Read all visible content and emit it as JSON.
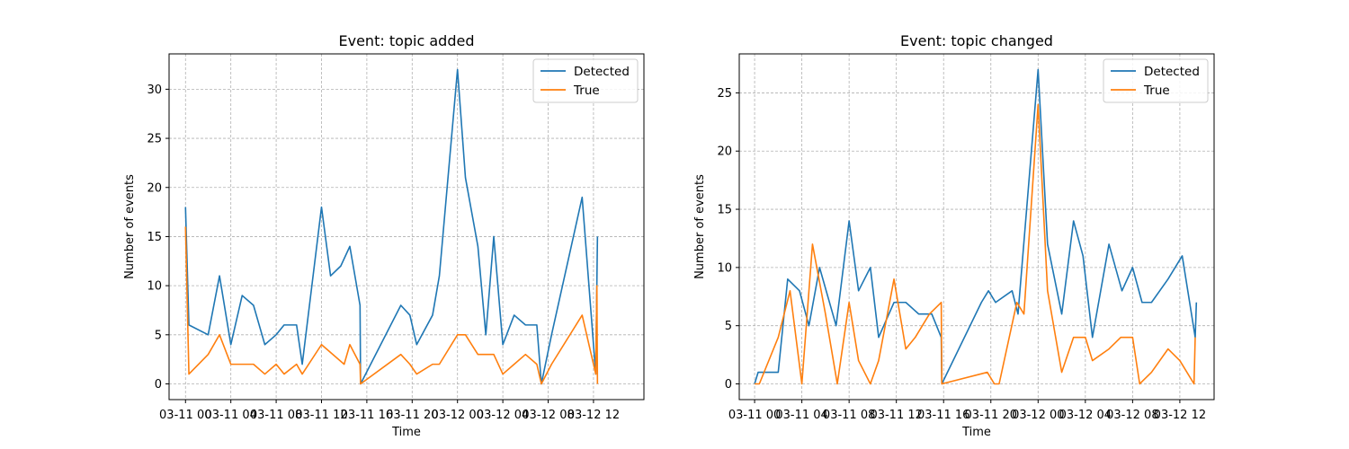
{
  "chart_data": [
    {
      "type": "line",
      "title": "Event: topic added",
      "xlabel": "Time",
      "ylabel": "Number of events",
      "x_unit": "hours since 03-11 00:00",
      "xlim": [
        -1.45,
        40.45
      ],
      "ylim": [
        -1.6,
        33.6
      ],
      "x_ticks": [
        {
          "label": "03-11 00",
          "value": 0
        },
        {
          "label": "03-11 04",
          "value": 4
        },
        {
          "label": "03-11 08",
          "value": 8
        },
        {
          "label": "03-11 12",
          "value": 12
        },
        {
          "label": "03-11 16",
          "value": 16
        },
        {
          "label": "03-11 20",
          "value": 20
        },
        {
          "label": "03-12 00",
          "value": 24
        },
        {
          "label": "03-12 04",
          "value": 28
        },
        {
          "label": "03-12 08",
          "value": 32
        },
        {
          "label": "03-12 12",
          "value": 36
        }
      ],
      "y_ticks": [
        0,
        5,
        10,
        15,
        20,
        25,
        30
      ],
      "grid": true,
      "legend_position": "top-right",
      "series": [
        {
          "name": "Detected",
          "color": "#1f77b4",
          "points": [
            [
              0,
              18
            ],
            [
              0.3,
              6
            ],
            [
              2,
              5
            ],
            [
              3,
              11
            ],
            [
              4,
              4
            ],
            [
              5,
              9
            ],
            [
              6,
              8
            ],
            [
              7,
              4
            ],
            [
              8,
              5
            ],
            [
              8.7,
              6
            ],
            [
              9.8,
              6
            ],
            [
              10.3,
              2
            ],
            [
              12,
              18
            ],
            [
              12.8,
              11
            ],
            [
              13.7,
              12
            ],
            [
              14.5,
              14
            ],
            [
              15.4,
              8
            ],
            [
              15.45,
              0
            ],
            [
              19,
              8
            ],
            [
              19.8,
              7
            ],
            [
              20.4,
              4
            ],
            [
              21.8,
              7
            ],
            [
              22.4,
              11
            ],
            [
              24,
              32
            ],
            [
              24.7,
              21
            ],
            [
              25.8,
              14
            ],
            [
              26.5,
              5
            ],
            [
              27.2,
              15
            ],
            [
              28,
              4
            ],
            [
              29,
              7
            ],
            [
              30,
              6
            ],
            [
              31,
              6
            ],
            [
              31.4,
              0
            ],
            [
              32.3,
              5
            ],
            [
              35,
              19
            ],
            [
              36.2,
              1
            ],
            [
              36.35,
              15
            ]
          ]
        },
        {
          "name": "True",
          "color": "#ff7f0e",
          "points": [
            [
              0,
              16
            ],
            [
              0.3,
              1
            ],
            [
              2,
              3
            ],
            [
              3,
              5
            ],
            [
              4,
              2
            ],
            [
              5,
              2
            ],
            [
              6,
              2
            ],
            [
              7,
              1
            ],
            [
              8,
              2
            ],
            [
              8.7,
              1
            ],
            [
              9.8,
              2
            ],
            [
              10.3,
              1
            ],
            [
              12,
              4
            ],
            [
              14,
              2
            ],
            [
              14.5,
              4
            ],
            [
              15.4,
              2
            ],
            [
              15.45,
              0
            ],
            [
              19,
              3
            ],
            [
              19.8,
              2
            ],
            [
              20.4,
              1
            ],
            [
              21.8,
              2
            ],
            [
              22.4,
              2
            ],
            [
              24,
              5
            ],
            [
              24.7,
              5
            ],
            [
              25.8,
              3
            ],
            [
              26.5,
              3
            ],
            [
              27.2,
              3
            ],
            [
              28,
              1
            ],
            [
              29,
              2
            ],
            [
              30,
              3
            ],
            [
              31,
              2
            ],
            [
              31.4,
              0
            ],
            [
              32.3,
              2
            ],
            [
              35,
              7
            ],
            [
              36.2,
              1
            ],
            [
              36.3,
              10
            ],
            [
              36.35,
              0
            ]
          ]
        }
      ]
    },
    {
      "type": "line",
      "title": "Event: topic changed",
      "xlabel": "Time",
      "ylabel": "Number of events",
      "x_unit": "hours since 03-11 00:00",
      "xlim": [
        -1.3,
        38.9
      ],
      "ylim": [
        -1.35,
        28.35
      ],
      "x_ticks": [
        {
          "label": "03-11 00",
          "value": 0
        },
        {
          "label": "03-11 04",
          "value": 4
        },
        {
          "label": "03-11 08",
          "value": 8
        },
        {
          "label": "03-11 12",
          "value": 12
        },
        {
          "label": "03-11 16",
          "value": 16
        },
        {
          "label": "03-11 20",
          "value": 20
        },
        {
          "label": "03-12 00",
          "value": 24
        },
        {
          "label": "03-12 04",
          "value": 28
        },
        {
          "label": "03-12 08",
          "value": 32
        },
        {
          "label": "03-12 12",
          "value": 36
        }
      ],
      "y_ticks": [
        0,
        5,
        10,
        15,
        20,
        25
      ],
      "grid": true,
      "legend_position": "top-right",
      "series": [
        {
          "name": "Detected",
          "color": "#1f77b4",
          "points": [
            [
              0,
              0
            ],
            [
              0.3,
              1
            ],
            [
              2,
              1
            ],
            [
              2.8,
              9
            ],
            [
              3.8,
              8
            ],
            [
              4.6,
              5
            ],
            [
              5.5,
              10
            ],
            [
              6.9,
              5
            ],
            [
              8,
              14
            ],
            [
              8.8,
              8
            ],
            [
              9.8,
              10
            ],
            [
              10.5,
              4
            ],
            [
              11.8,
              7
            ],
            [
              12.8,
              7
            ],
            [
              13.9,
              6
            ],
            [
              15,
              6
            ],
            [
              15.8,
              4
            ],
            [
              15.85,
              0
            ],
            [
              19.2,
              7
            ],
            [
              19.8,
              8
            ],
            [
              20.4,
              7
            ],
            [
              21.8,
              8
            ],
            [
              22.3,
              6
            ],
            [
              24,
              27
            ],
            [
              24.8,
              12
            ],
            [
              26,
              6
            ],
            [
              27,
              14
            ],
            [
              27.8,
              11
            ],
            [
              28.6,
              4
            ],
            [
              30,
              12
            ],
            [
              31.1,
              8
            ],
            [
              32,
              10
            ],
            [
              32.8,
              7
            ],
            [
              33.6,
              7
            ],
            [
              35,
              9
            ],
            [
              36.2,
              11
            ],
            [
              37.3,
              4
            ],
            [
              37.4,
              7
            ]
          ]
        },
        {
          "name": "True",
          "color": "#ff7f0e",
          "points": [
            [
              0,
              0
            ],
            [
              0.4,
              0
            ],
            [
              2,
              4
            ],
            [
              3,
              8
            ],
            [
              4,
              0
            ],
            [
              4.9,
              12
            ],
            [
              6,
              6
            ],
            [
              7,
              0
            ],
            [
              8,
              7
            ],
            [
              8.8,
              2
            ],
            [
              9.8,
              0
            ],
            [
              10.5,
              2
            ],
            [
              11.8,
              9
            ],
            [
              12.8,
              3
            ],
            [
              13.6,
              4
            ],
            [
              14.8,
              6
            ],
            [
              15.8,
              7
            ],
            [
              15.85,
              0
            ],
            [
              19.7,
              1
            ],
            [
              20.3,
              0
            ],
            [
              20.7,
              0
            ],
            [
              22.2,
              7
            ],
            [
              22.8,
              6
            ],
            [
              24,
              24
            ],
            [
              24.8,
              8
            ],
            [
              26,
              1
            ],
            [
              27,
              4
            ],
            [
              28,
              4
            ],
            [
              28.6,
              2
            ],
            [
              30,
              3
            ],
            [
              31,
              4
            ],
            [
              32,
              4
            ],
            [
              32.6,
              0
            ],
            [
              33.6,
              1
            ],
            [
              35,
              3
            ],
            [
              36,
              2
            ],
            [
              37.2,
              0
            ],
            [
              37.3,
              4
            ]
          ]
        }
      ]
    }
  ]
}
